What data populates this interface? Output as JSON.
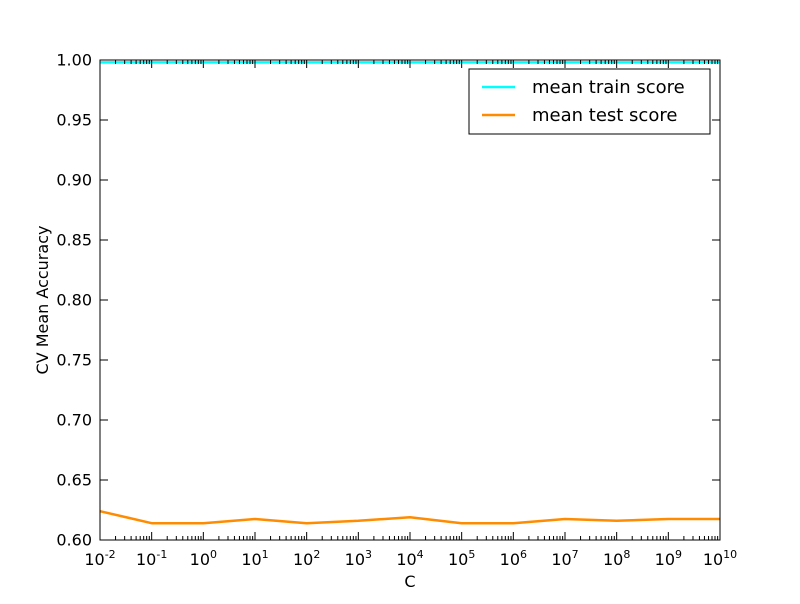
{
  "chart_data": {
    "type": "line",
    "title": "",
    "xlabel": "C",
    "ylabel": "CV Mean Accuracy",
    "xscale": "log",
    "x": [
      0.01,
      0.1,
      1,
      10,
      100,
      1000,
      10000,
      100000,
      1000000,
      10000000,
      100000000,
      1000000000,
      10000000000
    ],
    "xlim": [
      0.01,
      10000000000
    ],
    "ylim": [
      0.6,
      1.0
    ],
    "x_tick_labels": [
      {
        "base": "10",
        "exp": "-2"
      },
      {
        "base": "10",
        "exp": "-1"
      },
      {
        "base": "10",
        "exp": "0"
      },
      {
        "base": "10",
        "exp": "1"
      },
      {
        "base": "10",
        "exp": "2"
      },
      {
        "base": "10",
        "exp": "3"
      },
      {
        "base": "10",
        "exp": "4"
      },
      {
        "base": "10",
        "exp": "5"
      },
      {
        "base": "10",
        "exp": "6"
      },
      {
        "base": "10",
        "exp": "7"
      },
      {
        "base": "10",
        "exp": "8"
      },
      {
        "base": "10",
        "exp": "9"
      },
      {
        "base": "10",
        "exp": "10"
      }
    ],
    "y_ticks": [
      0.6,
      0.65,
      0.7,
      0.75,
      0.8,
      0.85,
      0.9,
      0.95,
      1.0
    ],
    "y_tick_labels": [
      "0.60",
      "0.65",
      "0.70",
      "0.75",
      "0.80",
      "0.85",
      "0.90",
      "0.95",
      "1.00"
    ],
    "grid": false,
    "legend_position": "top-right",
    "series": [
      {
        "name": "mean train score",
        "color": "#00ffff",
        "values": [
          0.998,
          0.998,
          0.998,
          0.998,
          0.998,
          0.998,
          0.998,
          0.998,
          0.998,
          0.998,
          0.998,
          0.998,
          0.998
        ]
      },
      {
        "name": "mean test score",
        "color": "#ff8c00",
        "values": [
          0.624,
          0.614,
          0.614,
          0.6175,
          0.614,
          0.616,
          0.619,
          0.614,
          0.614,
          0.6175,
          0.616,
          0.6175,
          0.6175
        ]
      }
    ]
  }
}
